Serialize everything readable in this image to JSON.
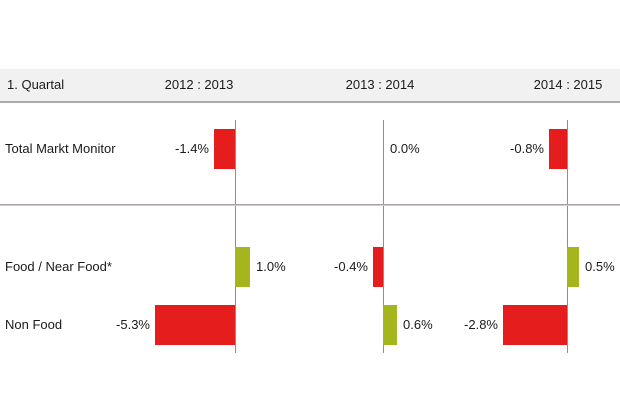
{
  "header": {
    "row_label": "1. Quartal",
    "periods": [
      "2012 : 2013",
      "2013 : 2014",
      "2014 : 2015"
    ]
  },
  "chart_data": {
    "type": "bar",
    "orientation": "horizontal",
    "title": "1. Quartal",
    "categories": [
      "Total Markt Monitor",
      "Food / Near Food*",
      "Non Food"
    ],
    "series": [
      {
        "name": "2012 : 2013",
        "values": [
          -1.4,
          1.0,
          -5.3
        ],
        "labels": [
          "-1.4%",
          "1.0%",
          "-5.3%"
        ]
      },
      {
        "name": "2013 : 2014",
        "values": [
          0.0,
          -0.4,
          0.6
        ],
        "labels": [
          "0.0%",
          "-0.4%",
          "0.6%"
        ]
      },
      {
        "name": "2014 : 2015",
        "values": [
          -0.8,
          0.5,
          -2.8
        ],
        "labels": [
          "-0.8%",
          "0.5%",
          "-2.8%"
        ]
      }
    ],
    "unit": "%",
    "legend": "none",
    "grid": "per-panel vertical baseline, horizontal group separator",
    "colors": {
      "negative": "#e51d1d",
      "positive": "#a4b51e",
      "axis": "#8f8f8f",
      "separator": "#9a8888",
      "header_bg": "#f1f1f1",
      "header_border": "#ababab",
      "text": "#1a1a1a"
    }
  }
}
